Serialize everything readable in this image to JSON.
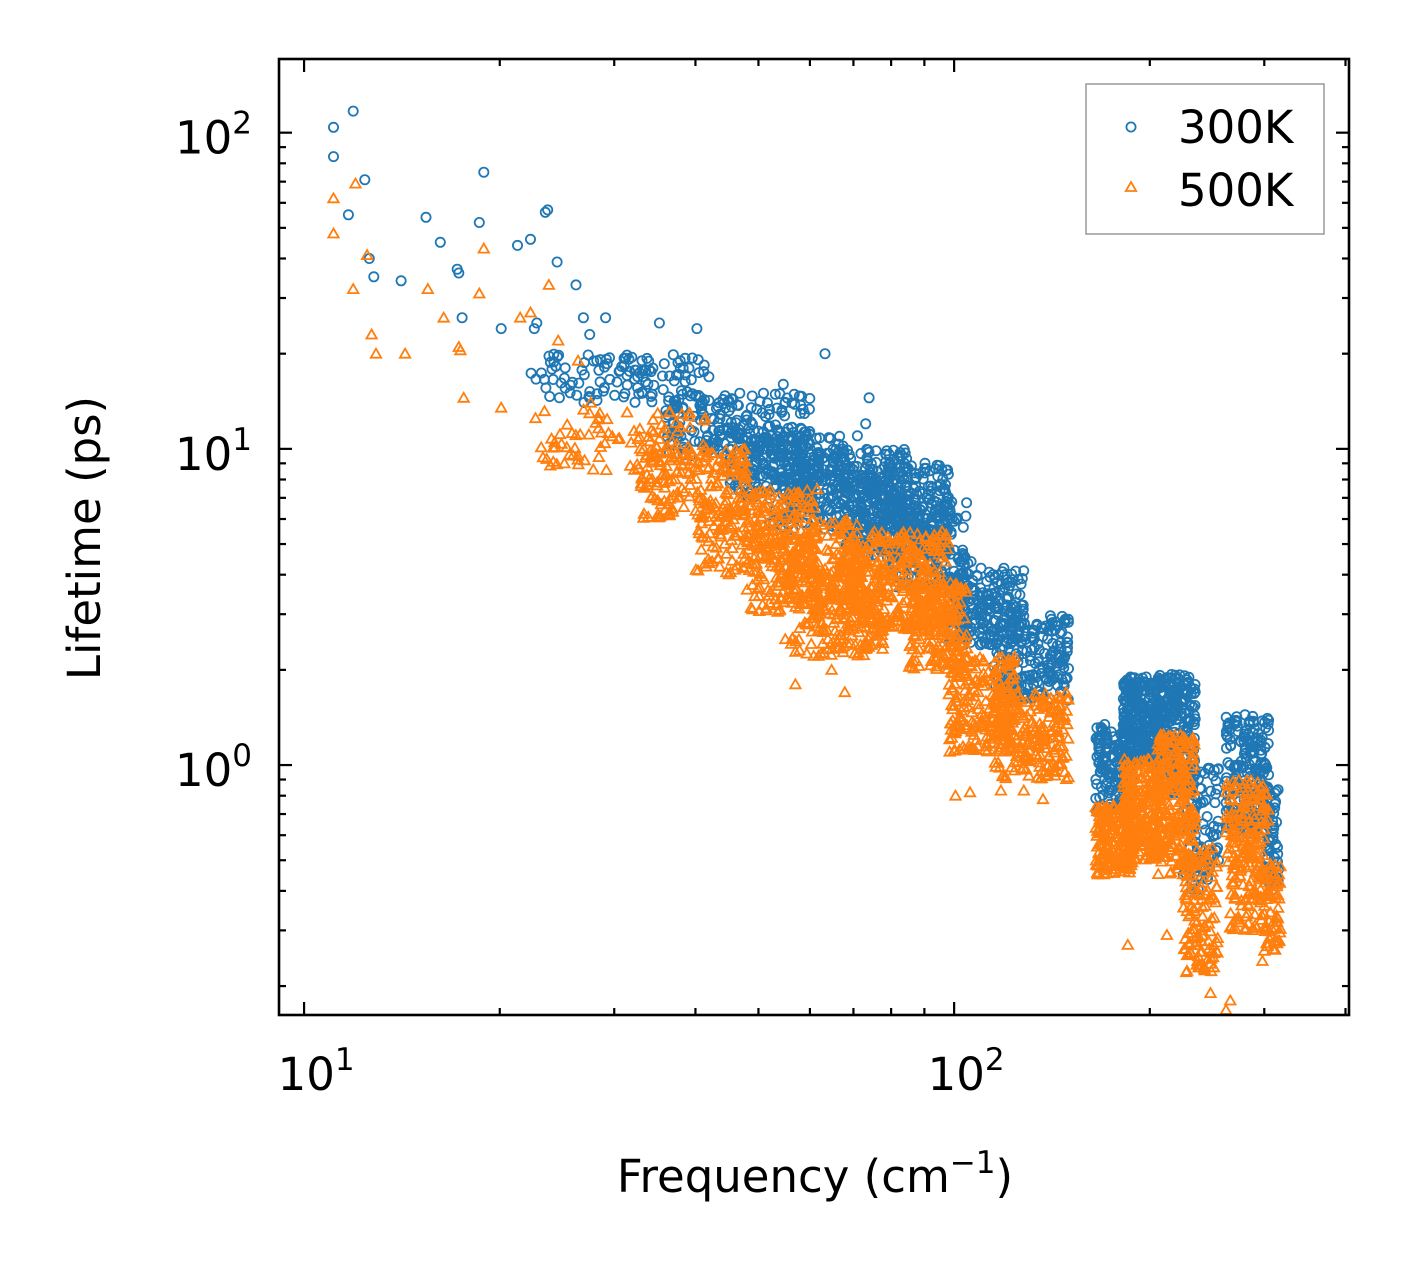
{
  "chart_data": {
    "type": "scatter",
    "xscale": "log",
    "yscale": "log",
    "xlabel": "Frequency (cm",
    "xlabel_sup": "−1",
    "xlabel_end": ")",
    "ylabel": "Lifetime (ps)",
    "xlim": [
      9.15,
      405
    ],
    "ylim": [
      0.162,
      171
    ],
    "x_ticks": [
      {
        "value": 10,
        "base": "10",
        "exp": "1"
      },
      {
        "value": 100,
        "base": "10",
        "exp": "2"
      }
    ],
    "y_ticks": [
      {
        "value": 1,
        "base": "10",
        "exp": "0"
      },
      {
        "value": 10,
        "base": "10",
        "exp": "1"
      },
      {
        "value": 100,
        "base": "10",
        "exp": "2"
      }
    ],
    "legend_position": "top-right",
    "series": [
      {
        "name": "300K",
        "marker": "circle",
        "color": "#1f77b4",
        "points": [
          [
            11.1,
            104
          ],
          [
            11.1,
            84
          ],
          [
            11.7,
            55
          ],
          [
            11.9,
            117
          ],
          [
            12.4,
            71
          ],
          [
            12.6,
            40
          ],
          [
            12.8,
            35
          ],
          [
            14.1,
            34
          ],
          [
            15.4,
            54
          ],
          [
            16.2,
            45
          ],
          [
            17.2,
            37
          ],
          [
            17.3,
            36
          ],
          [
            17.5,
            26
          ],
          [
            18.6,
            52
          ],
          [
            18.9,
            75
          ],
          [
            20.1,
            24
          ],
          [
            21.3,
            44
          ],
          [
            22.3,
            46
          ],
          [
            22.6,
            24
          ],
          [
            22.8,
            25
          ],
          [
            23.5,
            56
          ],
          [
            23.7,
            57
          ],
          [
            24.5,
            39
          ],
          [
            26.2,
            33
          ],
          [
            26.9,
            26
          ],
          [
            27.5,
            23
          ],
          [
            28.2,
            19
          ],
          [
            29.1,
            26
          ],
          [
            33.1,
            19
          ],
          [
            33.8,
            16
          ],
          [
            34.4,
            18
          ],
          [
            35.2,
            25
          ],
          [
            35.6,
            17
          ],
          [
            36.5,
            17
          ],
          [
            37.9,
            19
          ],
          [
            38.3,
            18
          ],
          [
            39.1,
            18
          ],
          [
            40.2,
            24
          ],
          [
            43.5,
            14
          ],
          [
            46.8,
            15
          ],
          [
            50.9,
            15
          ],
          [
            54.6,
            16
          ],
          [
            57.3,
            10
          ],
          [
            63.3,
            20
          ],
          [
            71.0,
            11
          ],
          [
            73.1,
            12
          ],
          [
            74.0,
            14.5
          ],
          [
            83.2,
            9.5
          ],
          [
            90.2,
            9.0
          ],
          [
            97.0,
            7.3
          ],
          [
            98.5,
            6.4
          ],
          [
            103.5,
            4.6
          ],
          [
            106.2,
            4.4
          ],
          [
            116.0,
            3.4
          ],
          [
            127.0,
            3.2
          ],
          [
            137.0,
            2.7
          ],
          [
            145.0,
            2.1
          ],
          [
            148.0,
            2.2
          ]
        ],
        "clusters": [
          {
            "x": [
              22,
              42
            ],
            "y": [
              14,
              20
            ],
            "n": 110
          },
          {
            "x": [
              36,
              60
            ],
            "y": [
              9.5,
              15
            ],
            "n": 220
          },
          {
            "x": [
              45,
              68
            ],
            "y": [
              7,
              11
            ],
            "n": 240
          },
          {
            "x": [
              52,
              85
            ],
            "y": [
              5.5,
              10
            ],
            "n": 300
          },
          {
            "x": [
              68,
              98
            ],
            "y": [
              4.5,
              9
            ],
            "n": 300
          },
          {
            "x": [
              80,
              105
            ],
            "y": [
              3.6,
              6.8
            ],
            "n": 200
          },
          {
            "x": [
              98,
              128
            ],
            "y": [
              2.4,
              4.2
            ],
            "n": 220
          },
          {
            "x": [
              115,
              150
            ],
            "y": [
              1.6,
              3.0
            ],
            "n": 200
          },
          {
            "x": [
              165,
              188
            ],
            "y": [
              0.7,
              1.35
            ],
            "n": 160
          },
          {
            "x": [
              182,
              208
            ],
            "y": [
              1.0,
              1.9
            ],
            "n": 260
          },
          {
            "x": [
              205,
              235
            ],
            "y": [
              0.8,
              1.95
            ],
            "n": 260
          },
          {
            "x": [
              225,
              255
            ],
            "y": [
              0.4,
              1.0
            ],
            "n": 100
          },
          {
            "x": [
              262,
              305
            ],
            "y": [
              0.6,
              1.45
            ],
            "n": 200
          },
          {
            "x": [
              300,
              316
            ],
            "y": [
              0.4,
              0.85
            ],
            "n": 60
          }
        ]
      },
      {
        "name": "500K",
        "marker": "triangle",
        "color": "#ff7f0e",
        "points": [
          [
            11.1,
            62
          ],
          [
            11.1,
            48
          ],
          [
            11.9,
            32
          ],
          [
            12.0,
            69
          ],
          [
            12.5,
            41
          ],
          [
            12.7,
            23
          ],
          [
            12.9,
            20
          ],
          [
            14.3,
            20
          ],
          [
            15.5,
            32
          ],
          [
            16.4,
            26
          ],
          [
            17.3,
            21
          ],
          [
            17.4,
            20.5
          ],
          [
            17.6,
            14.5
          ],
          [
            18.6,
            31
          ],
          [
            18.9,
            43
          ],
          [
            20.1,
            13.5
          ],
          [
            21.5,
            26
          ],
          [
            22.3,
            27
          ],
          [
            22.7,
            12.5
          ],
          [
            23.8,
            33
          ],
          [
            24.6,
            22
          ],
          [
            26.4,
            19
          ],
          [
            27.6,
            14
          ],
          [
            28.4,
            12.5
          ],
          [
            55.0,
            2.5
          ],
          [
            57.0,
            1.8
          ],
          [
            64.8,
            2.0
          ],
          [
            67.9,
            1.7
          ],
          [
            84.0,
            2.7
          ],
          [
            93.0,
            3.0
          ],
          [
            100.5,
            0.8
          ],
          [
            105.8,
            0.82
          ],
          [
            118.0,
            0.83
          ],
          [
            128.0,
            0.83
          ],
          [
            137.0,
            0.78
          ],
          [
            148.0,
            0.95
          ],
          [
            185.0,
            0.27
          ],
          [
            212.5,
            0.29
          ],
          [
            248.0,
            0.19
          ],
          [
            262.0,
            0.168
          ],
          [
            266.0,
            0.18
          ],
          [
            298.0,
            0.24
          ]
        ],
        "clusters": [
          {
            "x": [
              23,
              42
            ],
            "y": [
              8.5,
              13.5
            ],
            "n": 100
          },
          {
            "x": [
              33,
              48
            ],
            "y": [
              6,
              10
            ],
            "n": 160
          },
          {
            "x": [
              40,
              62
            ],
            "y": [
              4,
              7.5
            ],
            "n": 220
          },
          {
            "x": [
              48,
              72
            ],
            "y": [
              3,
              6
            ],
            "n": 260
          },
          {
            "x": [
              55,
              78
            ],
            "y": [
              2.2,
              4.5
            ],
            "n": 240
          },
          {
            "x": [
              68,
              98
            ],
            "y": [
              2.7,
              5.5
            ],
            "n": 300
          },
          {
            "x": [
              85,
              105
            ],
            "y": [
              2.0,
              3.8
            ],
            "n": 200
          },
          {
            "x": [
              98,
              125
            ],
            "y": [
              1.1,
              2.2
            ],
            "n": 200
          },
          {
            "x": [
              115,
              150
            ],
            "y": [
              0.9,
              1.7
            ],
            "n": 220
          },
          {
            "x": [
              165,
              188
            ],
            "y": [
              0.45,
              0.75
            ],
            "n": 180
          },
          {
            "x": [
              182,
              208
            ],
            "y": [
              0.5,
              1.05
            ],
            "n": 240
          },
          {
            "x": [
              205,
              235
            ],
            "y": [
              0.45,
              1.25
            ],
            "n": 240
          },
          {
            "x": [
              225,
              255
            ],
            "y": [
              0.22,
              0.55
            ],
            "n": 120
          },
          {
            "x": [
              262,
              305
            ],
            "y": [
              0.3,
              0.9
            ],
            "n": 200
          },
          {
            "x": [
              300,
              318
            ],
            "y": [
              0.25,
              0.5
            ],
            "n": 60
          }
        ]
      }
    ]
  }
}
